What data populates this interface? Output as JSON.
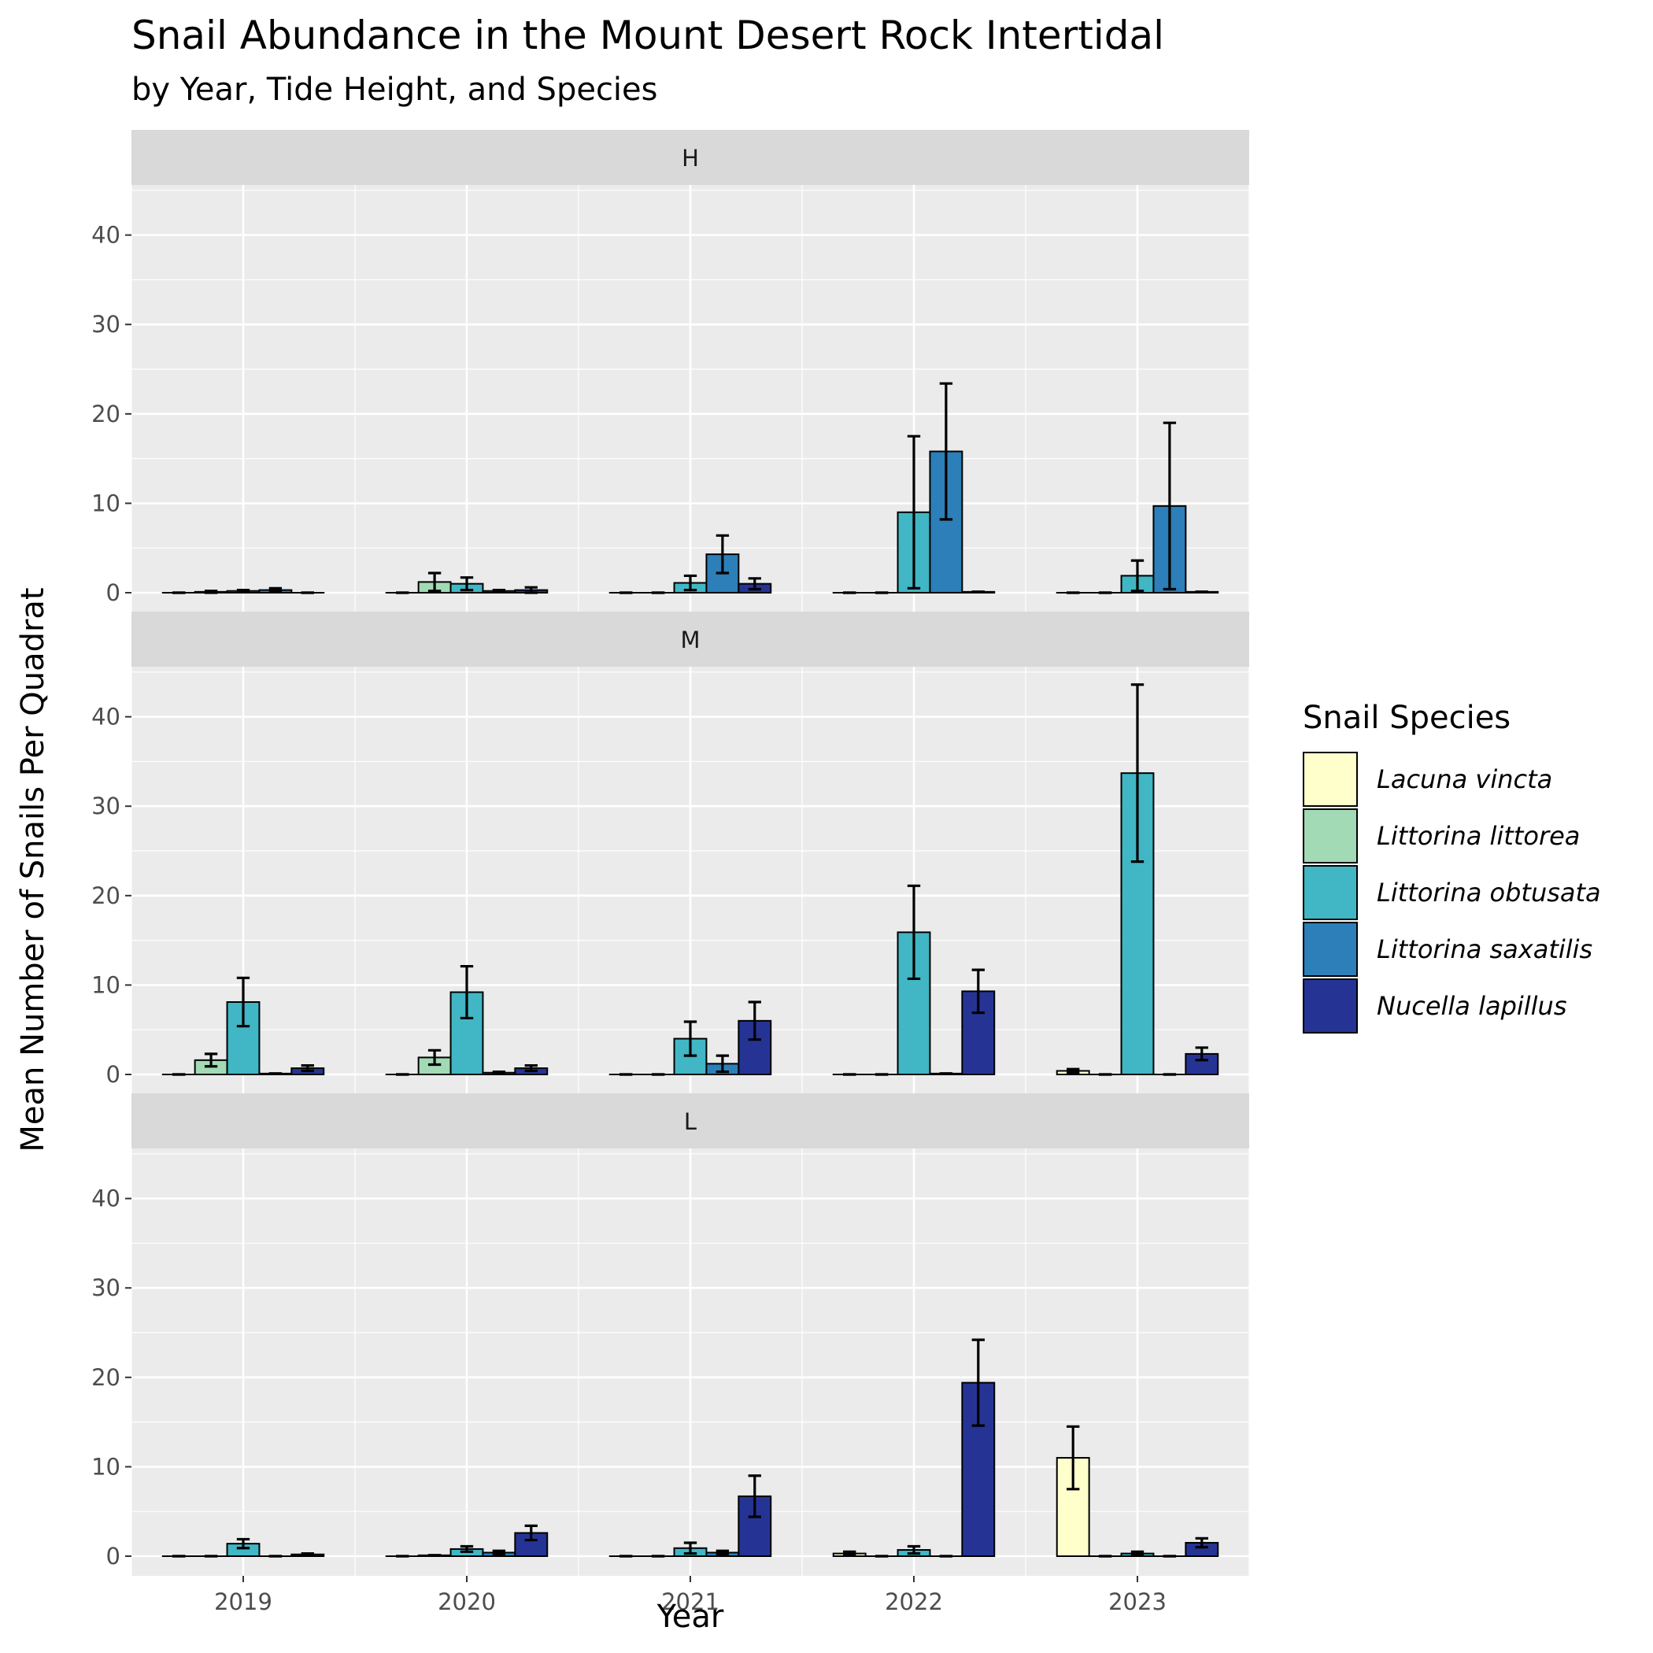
{
  "chart_data": {
    "type": "bar",
    "title": "Snail Abundance in the Mount Desert Rock Intertidal",
    "subtitle": "by Year, Tide Height, and Species",
    "xlabel": "Year",
    "ylabel": "Mean Number of Snails Per Quadrat",
    "categories": [
      "2019",
      "2020",
      "2021",
      "2022",
      "2023"
    ],
    "yticks": [
      0,
      10,
      20,
      30,
      40
    ],
    "ylim": [
      -2.2,
      45.6
    ],
    "grid": true,
    "legend": {
      "title": "Snail Species",
      "placement": "right"
    },
    "series": [
      {
        "name": "Lacuna vincta",
        "color": "#FFFFCC"
      },
      {
        "name": "Littorina littorea",
        "color": "#A1DAB4"
      },
      {
        "name": "Littorina obtusata",
        "color": "#41B6C4"
      },
      {
        "name": "Littorina saxatilis",
        "color": "#2C7FB8"
      },
      {
        "name": "Nucella lapillus",
        "color": "#253494"
      }
    ],
    "panels": [
      {
        "label": "H",
        "values": [
          [
            0,
            0.1,
            0.2,
            0.3,
            0
          ],
          [
            0,
            1.2,
            1.0,
            0.2,
            0.3
          ],
          [
            0,
            0,
            1.1,
            4.3,
            1.0
          ],
          [
            0,
            0,
            9.0,
            15.8,
            0.1
          ],
          [
            0,
            0,
            1.9,
            9.7,
            0.1
          ]
        ],
        "errors": [
          [
            0,
            0.1,
            0.1,
            0.2,
            0
          ],
          [
            0,
            1.0,
            0.7,
            0.1,
            0.3
          ],
          [
            0,
            0,
            0.8,
            2.1,
            0.6
          ],
          [
            0,
            0,
            8.5,
            7.6,
            0
          ],
          [
            0,
            0,
            1.7,
            9.3,
            0
          ]
        ]
      },
      {
        "label": "M",
        "values": [
          [
            0,
            1.6,
            8.1,
            0.1,
            0.7
          ],
          [
            0,
            1.9,
            9.2,
            0.2,
            0.7
          ],
          [
            0,
            0,
            4.0,
            1.2,
            6.0
          ],
          [
            0,
            0,
            15.9,
            0.1,
            9.3
          ],
          [
            0.4,
            0,
            33.7,
            0,
            2.3
          ]
        ],
        "errors": [
          [
            0,
            0.7,
            2.7,
            0,
            0.3
          ],
          [
            0,
            0.8,
            2.9,
            0.1,
            0.3
          ],
          [
            0,
            0,
            1.9,
            0.9,
            2.1
          ],
          [
            0,
            0,
            5.2,
            0,
            2.4
          ],
          [
            0.2,
            0,
            9.9,
            0,
            0.7
          ]
        ]
      },
      {
        "label": "L",
        "values": [
          [
            0,
            0,
            1.4,
            0,
            0.2
          ],
          [
            0,
            0.1,
            0.8,
            0.4,
            2.6
          ],
          [
            0,
            0,
            0.9,
            0.4,
            6.7
          ],
          [
            0.3,
            0,
            0.7,
            0,
            19.4
          ],
          [
            11.0,
            0,
            0.3,
            0,
            1.5
          ]
        ],
        "errors": [
          [
            0,
            0,
            0.5,
            0,
            0.1
          ],
          [
            0,
            0,
            0.3,
            0.2,
            0.8
          ],
          [
            0,
            0,
            0.6,
            0.2,
            2.3
          ],
          [
            0.2,
            0,
            0.4,
            0,
            4.8
          ],
          [
            3.5,
            0,
            0.2,
            0,
            0.5
          ]
        ]
      }
    ]
  }
}
